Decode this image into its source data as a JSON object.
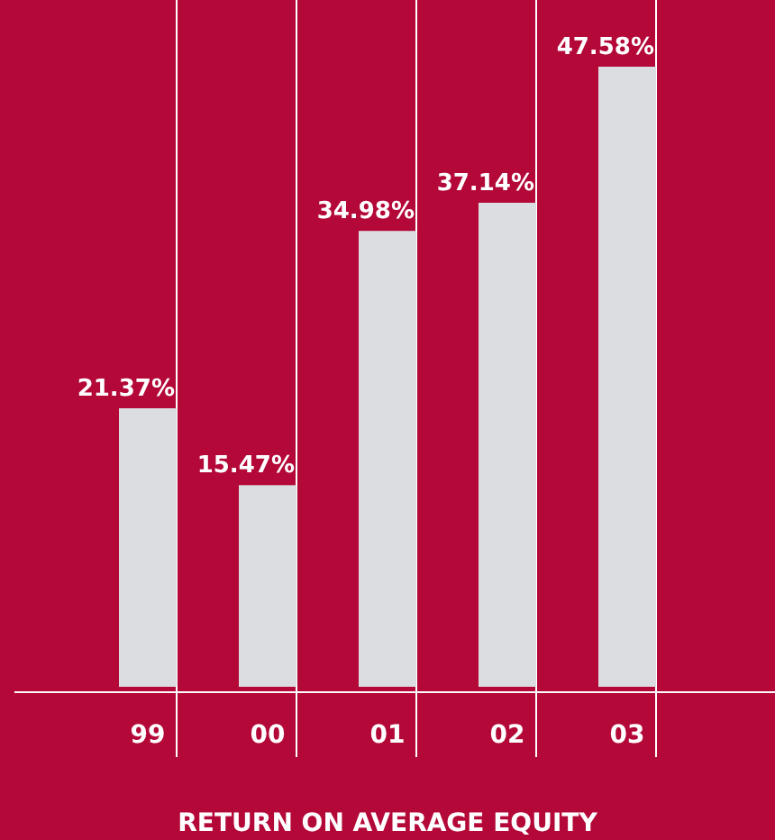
{
  "chart_data": {
    "type": "bar",
    "title": "RETURN ON AVERAGE EQUITY",
    "categories": [
      "99",
      "00",
      "01",
      "02",
      "03"
    ],
    "values": [
      21.37,
      15.47,
      34.98,
      37.14,
      47.58
    ],
    "value_labels": [
      "21.37%",
      "15.47%",
      "34.98%",
      "37.14%",
      "47.58%"
    ],
    "color": "#dcdde0",
    "grid": "x"
  }
}
